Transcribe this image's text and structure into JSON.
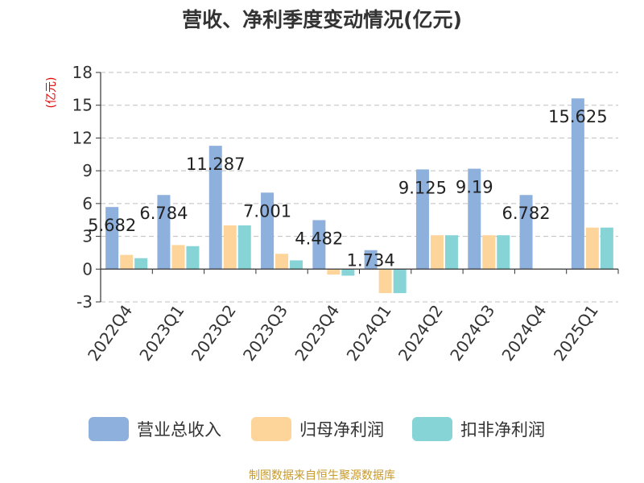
{
  "chart_data": {
    "type": "bar",
    "title": "营收、净利季度变动情况(亿元)",
    "ylabel": "(亿元)",
    "ylim": [
      -3,
      18
    ],
    "yticks": [
      -3,
      0,
      3,
      6,
      9,
      12,
      15,
      18
    ],
    "grid": true,
    "legend_position": "bottom",
    "categories": [
      "2022Q4",
      "2023Q1",
      "2023Q2",
      "2023Q3",
      "2023Q4",
      "2024Q1",
      "2024Q2",
      "2024Q3",
      "2024Q4",
      "2025Q1"
    ],
    "series": [
      {
        "name": "营业总收入",
        "color": "#8eb0dd",
        "values": [
          5.682,
          6.784,
          11.287,
          7.001,
          4.482,
          1.734,
          9.125,
          9.19,
          6.782,
          15.625
        ],
        "data_labels": [
          "5.682",
          "6.784",
          "11.287",
          "7.001",
          "4.482",
          "1.734",
          "9.125",
          "9.19",
          "6.782",
          "15.625"
        ]
      },
      {
        "name": "归母净利润",
        "color": "#fdd59a",
        "values": [
          1.3,
          2.2,
          4.0,
          1.4,
          -0.5,
          -2.2,
          3.1,
          3.1,
          0.05,
          3.8
        ]
      },
      {
        "name": "扣非净利润",
        "color": "#86d4d6",
        "values": [
          1.0,
          2.1,
          4.0,
          0.8,
          -0.6,
          -2.2,
          3.1,
          3.1,
          0.05,
          3.8
        ]
      }
    ],
    "source": "制图数据来自恒生聚源数据库"
  },
  "colors": {
    "title": "#333333",
    "ylabel": "#e00000",
    "axis": "#333333",
    "grid": "#bfbfbf",
    "source": "#c79a2c"
  }
}
